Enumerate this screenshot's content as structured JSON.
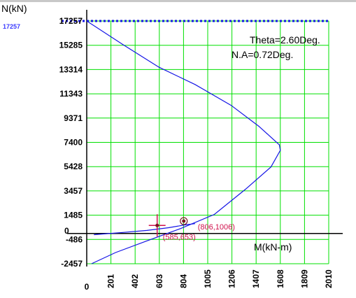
{
  "chart_data": {
    "type": "line",
    "title": "",
    "ylabel": "N(kN)",
    "xlabel": "M(kN-m)",
    "ylim": [
      -2457,
      17257
    ],
    "xlim": [
      0,
      2010
    ],
    "grid": true,
    "y_ticks": [
      17257,
      15285,
      13314,
      11343,
      9371,
      7400,
      5428,
      3457,
      1485,
      -486,
      -2457
    ],
    "y_tick_labels": [
      "17257",
      "15285",
      "13314",
      "11343",
      "9371",
      "7400",
      "5428",
      "3457",
      "1485",
      "-486",
      "-2457"
    ],
    "x_ticks": [
      0,
      201,
      402,
      603,
      804,
      1005,
      1206,
      1407,
      1608,
      1809,
      2010
    ],
    "x_tick_labels": [
      "0",
      "201",
      "402",
      "603",
      "804",
      "1005",
      "1206",
      "1407",
      "1608",
      "1809",
      "2010"
    ],
    "y_zero_label": "0",
    "max_load_label": "17257",
    "annotations": [
      "Theta=2.60Deg.",
      "N.A=0.72Deg."
    ],
    "series": [
      {
        "color": "#1414e6",
        "x": [
          0,
          300,
          600,
          900,
          1200,
          1430,
          1600,
          1608,
          1530,
          1320,
          1060,
          780,
          500,
          240,
          40
        ],
        "y": [
          17257,
          15350,
          13500,
          12100,
          10400,
          8700,
          7200,
          6750,
          5400,
          3600,
          1550,
          400,
          -600,
          -1550,
          -2457
        ]
      },
      {
        "color": "#1414e6",
        "x": [
          60,
          300,
          500,
          680,
          820,
          900
        ],
        "y": [
          -100,
          80,
          250,
          470,
          700,
          800
        ]
      }
    ],
    "points": [
      {
        "label": "(806,1006)",
        "x": 806,
        "y": 1006,
        "color": "#7a1420",
        "marker": "circle"
      },
      {
        "label": "(585,653)",
        "x": 585,
        "y": 653,
        "color": "#d0104c",
        "marker": "cross"
      }
    ]
  }
}
